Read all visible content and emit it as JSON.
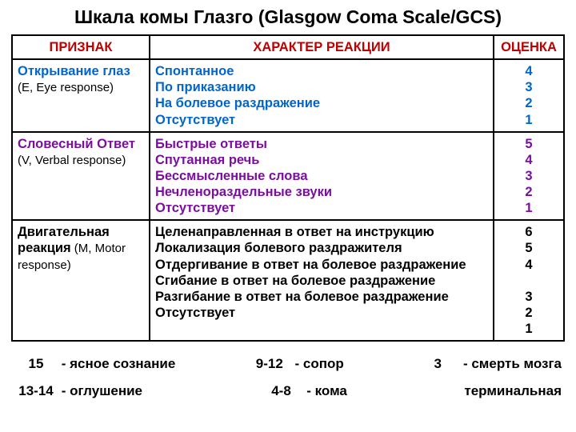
{
  "title": "Шкала комы Глазго (Glasgow Coma Scale/GCS)",
  "headers": {
    "sign": "ПРИЗНАК",
    "reaction": "ХАРАКТЕР РЕАКЦИИ",
    "score": "ОЦЕНКА"
  },
  "colors": {
    "header_text": "#c00000",
    "row1": "#0066cc",
    "row2": "#7a0f9e",
    "row3": "#000000",
    "border": "#000000",
    "background": "#ffffff"
  },
  "rows": [
    {
      "sign_label": "Открывание глаз",
      "sign_paren": "  (E, Eye response)",
      "color_class": "blue",
      "reactions": [
        "Спонтанное",
        "По приказанию",
        "На болевое раздражение",
        "Отсутствует"
      ],
      "scores": [
        "4",
        "3",
        "2",
        "1"
      ]
    },
    {
      "sign_label": "Словесный Ответ",
      "sign_paren": " (V, Verbal response)",
      "color_class": "purple",
      "reactions": [
        "Быстрые ответы",
        "Спутанная речь",
        "Бессмысленные слова",
        "Нечленораздельные звуки",
        "Отсутствует"
      ],
      "scores": [
        "5",
        "4",
        "3",
        "2",
        "1"
      ]
    },
    {
      "sign_label": "Двигательная реакция",
      "sign_paren": " (M, Motor response)",
      "color_class": "black",
      "reactions": [
        "Целенаправленная в ответ на инструкцию",
        "Локализация болевого раздражителя",
        "Отдергивание в ответ на болевое раздражение",
        "Сгибание в ответ на болевое раздражение",
        "Разгибание в ответ на болевое раздражение",
        "Отсутствует"
      ],
      "scores": [
        "6",
        "5",
        "4",
        "",
        "3",
        "2",
        "1"
      ]
    }
  ],
  "footer": {
    "line1": [
      {
        "num": "15",
        "text": "- ясное сознание"
      },
      {
        "num": "9-12",
        "text": "- сопор"
      },
      {
        "num": "3",
        "text": "- смерть мозга"
      }
    ],
    "line2": [
      {
        "num": "13-14",
        "text": "- оглушение"
      },
      {
        "num": "4-8",
        "text": "- кома"
      },
      {
        "num": "",
        "text": "терминальная"
      }
    ]
  }
}
